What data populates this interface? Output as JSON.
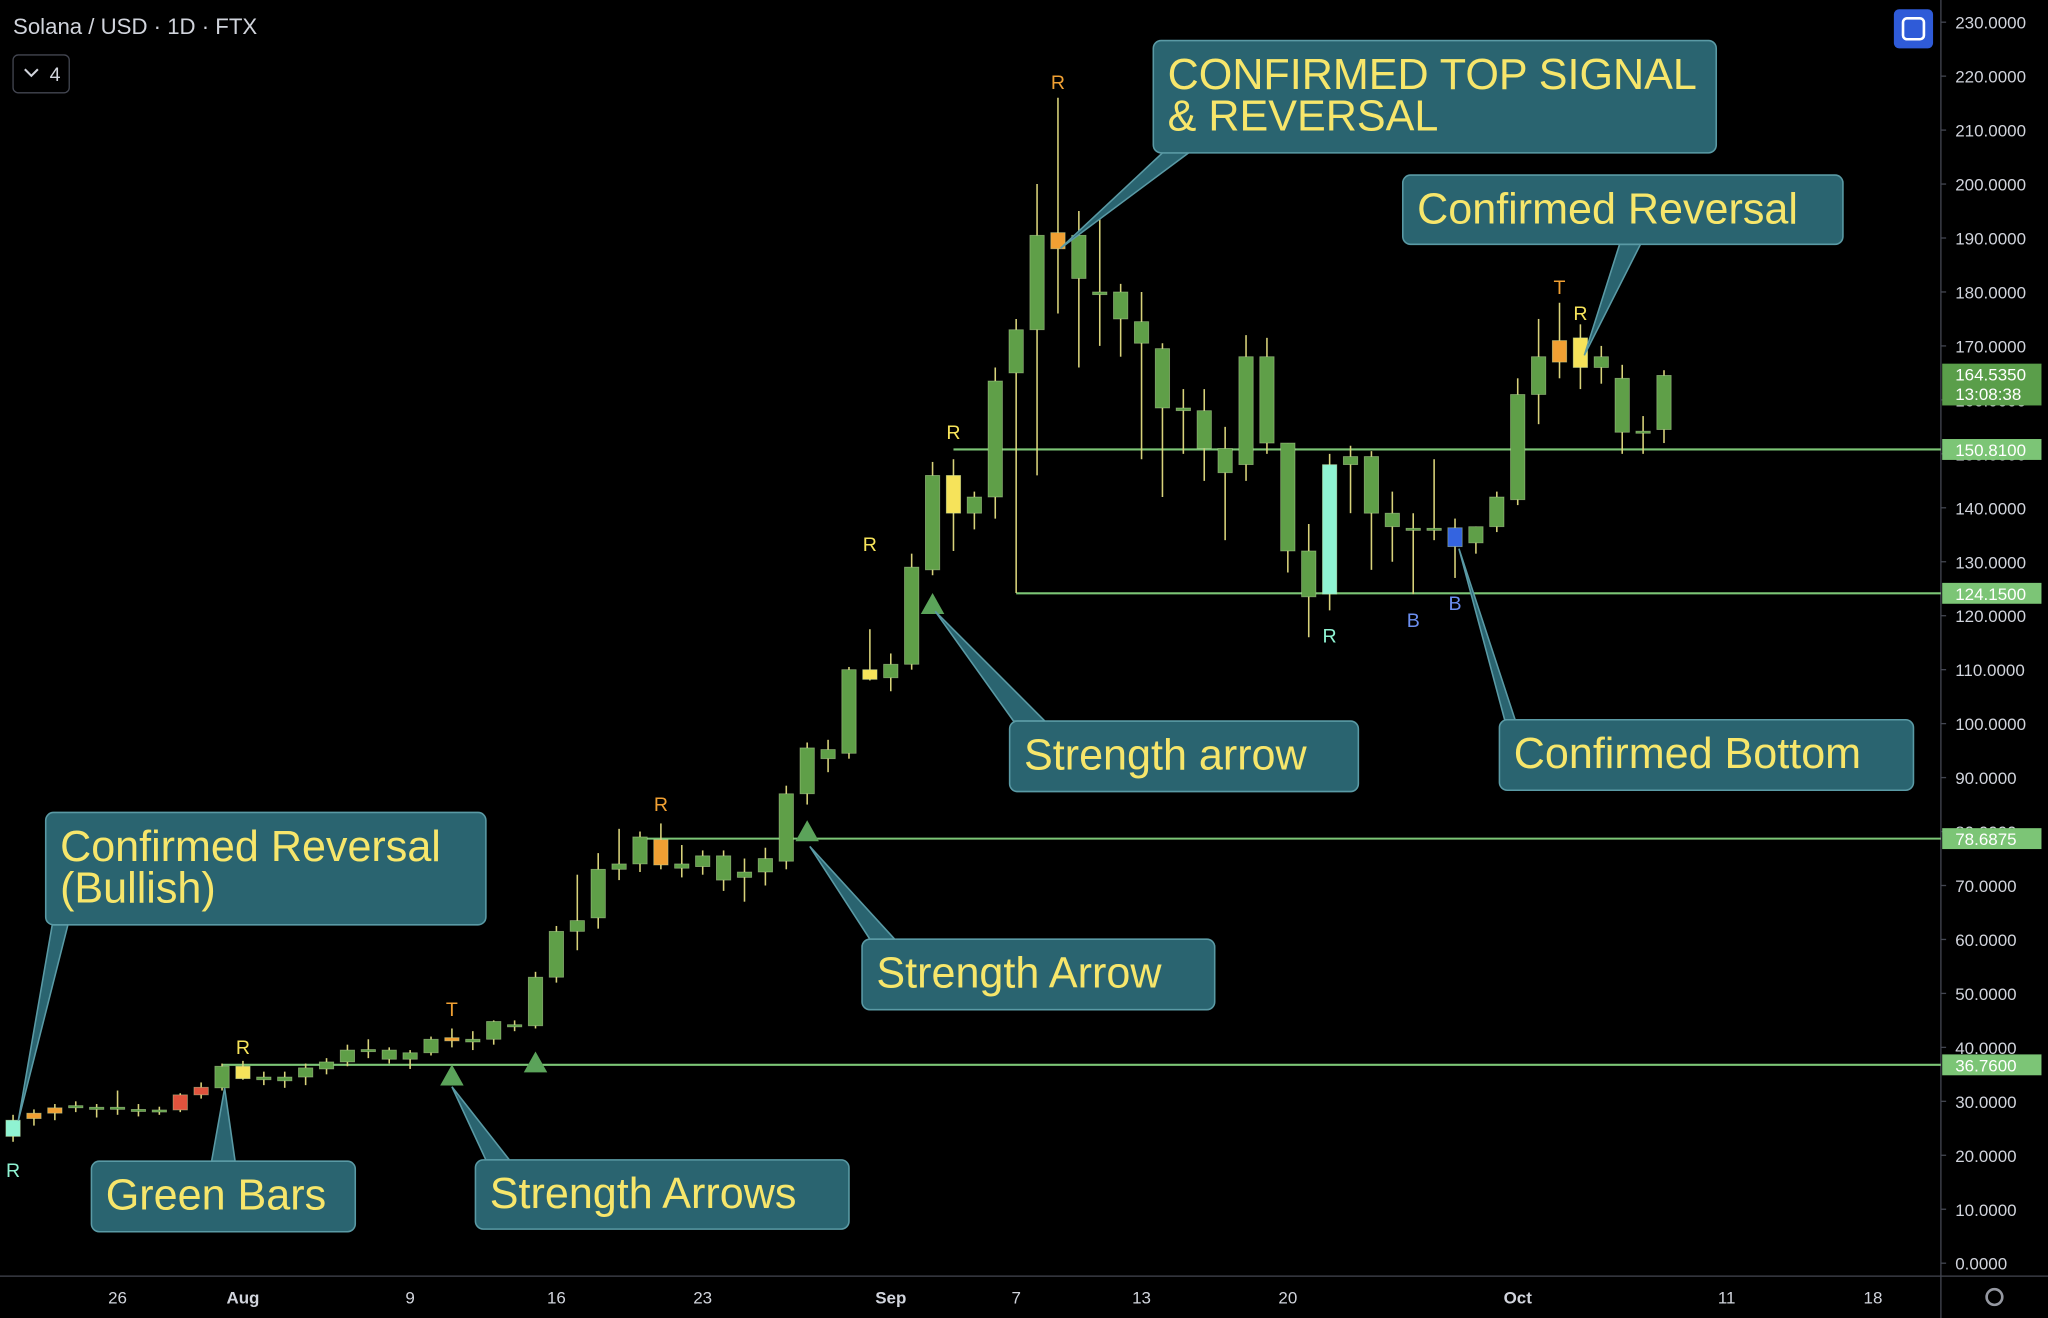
{
  "chart_data": {
    "type": "candlestick",
    "title": "Solana / USD · 1D · FTX",
    "collapsed_indicators": "4",
    "categories": [
      null,
      null,
      null,
      null,
      null,
      "26",
      null,
      null,
      null,
      null,
      null,
      "Aug",
      null,
      null,
      null,
      null,
      null,
      null,
      null,
      "9",
      null,
      null,
      null,
      null,
      null,
      null,
      "16",
      null,
      null,
      null,
      null,
      null,
      null,
      "23",
      null,
      null,
      null,
      null,
      null,
      null,
      null,
      null,
      "Sep",
      null,
      null,
      null,
      null,
      null,
      "7",
      null,
      null,
      null,
      null,
      null,
      "13",
      null,
      null,
      null,
      null,
      null,
      null,
      "20",
      null,
      null,
      null,
      null,
      null,
      null,
      null,
      null,
      null,
      null,
      "Oct",
      null,
      null,
      null,
      null,
      null,
      null,
      null,
      null,
      null,
      "11",
      null,
      null,
      null,
      null,
      null,
      null,
      "18",
      null,
      null
    ],
    "open": [
      23.5,
      26.8,
      27.8,
      28.8,
      28.5,
      28.6,
      28.3,
      28.2,
      28.4,
      31.2,
      32.5,
      36.5,
      34.5,
      33.8,
      34.5,
      36,
      37.3,
      39.2,
      39.5,
      37.8,
      39,
      41.2,
      41,
      41.5,
      44.2,
      44,
      53,
      61.5,
      64,
      73,
      74,
      78.5,
      74,
      73.5,
      75.5,
      71.5,
      72.5,
      74.5,
      87,
      93.5,
      94.5,
      110,
      108.5,
      111,
      128.5,
      146,
      139,
      142,
      165,
      173,
      188,
      190.5,
      180,
      180,
      174.5,
      169.5,
      158.5,
      158,
      151,
      148,
      168,
      152,
      132,
      124,
      148,
      149.5,
      139,
      136,
      136.2,
      136.3,
      133.5,
      136.5,
      141.5,
      161,
      167,
      171.5,
      166,
      164,
      154,
      154.5,
      null,
      null,
      null,
      null,
      null,
      null,
      null,
      null,
      null,
      null,
      null,
      null
    ],
    "high": [
      27.5,
      28.5,
      29.5,
      30,
      29.5,
      32,
      29.5,
      29,
      31.5,
      33.5,
      37,
      37.5,
      35.5,
      35.5,
      37,
      38,
      40.5,
      41.5,
      40,
      39.5,
      42,
      43.5,
      43,
      45,
      45,
      54,
      62.5,
      72,
      76,
      80.5,
      80,
      81.5,
      77.5,
      76.5,
      76.5,
      75,
      77,
      88.5,
      96.5,
      97,
      110.5,
      117.5,
      113,
      131.5,
      148.5,
      149,
      143,
      166,
      175,
      200,
      216,
      195,
      193.5,
      181.5,
      180,
      170.5,
      162,
      162,
      155,
      172,
      171.5,
      152,
      137,
      150,
      151.5,
      150.5,
      143,
      139,
      149,
      138,
      136.5,
      143,
      164,
      175,
      178,
      174,
      170,
      166.5,
      157,
      165.5,
      null,
      null,
      null,
      null,
      null,
      null,
      null,
      null,
      null,
      null,
      null,
      null
    ],
    "low": [
      22.5,
      25.5,
      26.5,
      28,
      27,
      27.5,
      27.2,
      27.5,
      28,
      30.5,
      32,
      34,
      33,
      32.5,
      33,
      35,
      36.5,
      38,
      37,
      36,
      38.5,
      40,
      39.5,
      40.5,
      43,
      43.5,
      52,
      58,
      62,
      71,
      72.5,
      73,
      71.5,
      72,
      69,
      67,
      70,
      73,
      85,
      91,
      93.5,
      108,
      106,
      110,
      127.5,
      132,
      136,
      138,
      124.2,
      146,
      176,
      166,
      170,
      168,
      149,
      142,
      150,
      145,
      134,
      145,
      150,
      128,
      116,
      121,
      139,
      128.5,
      130,
      124,
      134,
      127,
      131.5,
      135.5,
      140.5,
      155.5,
      164,
      162,
      163,
      150,
      150,
      152,
      null,
      null,
      null,
      null,
      null,
      null,
      null,
      null,
      null,
      null,
      null,
      null
    ],
    "close": [
      26.5,
      27.8,
      28.8,
      29.2,
      28.9,
      28.9,
      28.5,
      28.4,
      31.2,
      32.6,
      36.5,
      34.2,
      34,
      34.5,
      36.2,
      37.3,
      39.5,
      39.6,
      37.8,
      39,
      41.5,
      41.8,
      41.5,
      44.8,
      43.8,
      53,
      61.5,
      63.5,
      73,
      74,
      79,
      73.8,
      73.2,
      75.5,
      71,
      72.5,
      75,
      87,
      95.5,
      95.2,
      110,
      108.2,
      111,
      129,
      146,
      139,
      142,
      163.5,
      173,
      190.5,
      191,
      182.5,
      179.5,
      175,
      170.5,
      158.5,
      158,
      151,
      146.5,
      168,
      152,
      132,
      123.5,
      148,
      149.5,
      139,
      136.5,
      136.2,
      136,
      132.8,
      136.5,
      142,
      161,
      168,
      171,
      166,
      168,
      154,
      154.2,
      164.535,
      null,
      null,
      null,
      null,
      null,
      null,
      null,
      null,
      null,
      null,
      null,
      null
    ],
    "colors": [
      "#8ff3d2",
      "#f0a033",
      "#f0a033",
      "#5f9f48",
      "#5f9f48",
      "#5f9f48",
      "#5f9f48",
      "#5f9f48",
      "#e0533d",
      "#e0533d",
      "#5f9f48",
      "#f6e35a",
      "#5f9f48",
      "#5f9f48",
      "#5f9f48",
      "#5f9f48",
      "#5f9f48",
      "#5f9f48",
      "#5f9f48",
      "#5f9f48",
      "#5f9f48",
      "#f0a033",
      "#5f9f48",
      "#5f9f48",
      "#5f9f48",
      "#5f9f48",
      "#5f9f48",
      "#5f9f48",
      "#5f9f48",
      "#5f9f48",
      "#5f9f48",
      "#f0a033",
      "#5f9f48",
      "#5f9f48",
      "#5f9f48",
      "#5f9f48",
      "#5f9f48",
      "#5f9f48",
      "#5f9f48",
      "#5f9f48",
      "#5f9f48",
      "#f6e35a",
      "#5f9f48",
      "#5f9f48",
      "#5f9f48",
      "#f6e35a",
      "#5f9f48",
      "#5f9f48",
      "#5f9f48",
      "#5f9f48",
      "#f0a033",
      "#5f9f48",
      "#5f9f48",
      "#5f9f48",
      "#5f9f48",
      "#5f9f48",
      "#5f9f48",
      "#5f9f48",
      "#5f9f48",
      "#5f9f48",
      "#5f9f48",
      "#5f9f48",
      "#5f9f48",
      "#8ff3d2",
      "#5f9f48",
      "#5f9f48",
      "#5f9f48",
      "#5f9f48",
      "#5f9f48",
      "#3464e0",
      "#5f9f48",
      "#5f9f48",
      "#5f9f48",
      "#5f9f48",
      "#f0a033",
      "#f6e35a",
      "#5f9f48",
      "#5f9f48",
      "#5f9f48",
      "#5f9f48",
      null,
      null,
      null,
      null,
      null,
      null,
      null,
      null,
      null,
      null,
      null,
      null
    ],
    "wick_color": "#d8d27a",
    "ylim": [
      -2.4,
      234.1
    ],
    "yticks": [
      {
        "value": 0,
        "label": "0.0000"
      },
      {
        "value": 10,
        "label": "10.0000"
      },
      {
        "value": 20,
        "label": "20.0000"
      },
      {
        "value": 30,
        "label": "30.0000"
      },
      {
        "value": 40,
        "label": "40.0000"
      },
      {
        "value": 50,
        "label": "50.0000"
      },
      {
        "value": 60,
        "label": "60.0000"
      },
      {
        "value": 70,
        "label": "70.0000"
      },
      {
        "value": 80,
        "label": "80.0000"
      },
      {
        "value": 90,
        "label": "90.0000"
      },
      {
        "value": 100,
        "label": "100.0000"
      },
      {
        "value": 110,
        "label": "110.0000"
      },
      {
        "value": 120,
        "label": "120.0000"
      },
      {
        "value": 130,
        "label": "130.0000"
      },
      {
        "value": 140,
        "label": "140.0000"
      },
      {
        "value": 150,
        "label": "150.0000"
      },
      {
        "value": 160,
        "label": "160.0000"
      },
      {
        "value": 170,
        "label": "170.0000"
      },
      {
        "value": 180,
        "label": "180.0000"
      },
      {
        "value": 190,
        "label": "190.0000"
      },
      {
        "value": 200,
        "label": "200.0000"
      },
      {
        "value": 210,
        "label": "210.0000"
      },
      {
        "value": 220,
        "label": "220.0000"
      },
      {
        "value": 230,
        "label": "230.0000"
      }
    ],
    "levels": [
      {
        "value": 150.81,
        "label": "150.8100"
      },
      {
        "value": 124.15,
        "label": "124.1500"
      },
      {
        "value": 78.6875,
        "label": "78.6875"
      },
      {
        "value": 36.76,
        "label": "36.7600"
      }
    ],
    "level_color": "#7cc576",
    "last_price": {
      "value": 164.535,
      "label": "164.5350",
      "countdown": "13:08:38"
    },
    "signals": [
      {
        "label": "R",
        "color": "#8ff3d2"
      },
      {
        "label": "R",
        "color": "#f6e35a"
      },
      {
        "label": "T",
        "color": "#f0a033"
      },
      {
        "label": "R",
        "color": "#f0a033"
      },
      {
        "label": "R",
        "color": "#f6e35a"
      },
      {
        "label": "R",
        "color": "#f6e35a"
      },
      {
        "label": "R",
        "color": "#f0a033"
      },
      {
        "label": "R",
        "color": "#8ff3d2"
      },
      {
        "label": "B",
        "color": "#6c8ff0"
      },
      {
        "label": "B",
        "color": "#6c8ff0"
      },
      {
        "label": "T",
        "color": "#f0a033"
      },
      {
        "label": "R",
        "color": "#f6e35a"
      }
    ],
    "callouts": [
      [
        "Confirmed Reversal",
        "(Bullish)"
      ],
      [
        "Green Bars"
      ],
      [
        "Strength Arrows"
      ],
      [
        "Strength Arrow"
      ],
      [
        "Strength arrow"
      ],
      [
        "CONFIRMED TOP SIGNAL",
        "& REVERSAL"
      ],
      [
        "Confirmed Reversal"
      ],
      [
        "Confirmed Bottom"
      ]
    ]
  }
}
